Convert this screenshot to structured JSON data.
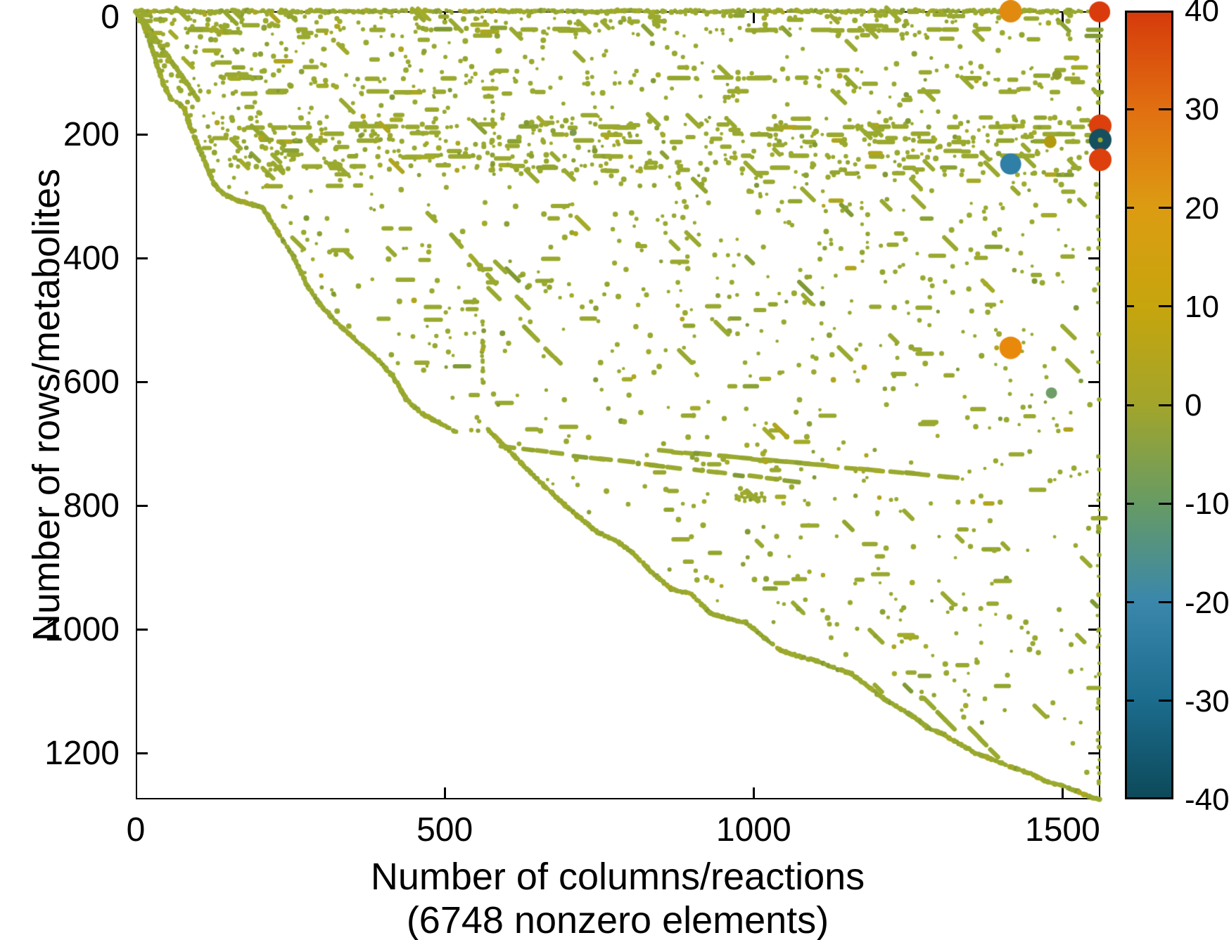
{
  "chart_data": {
    "type": "scatter",
    "subtype": "sparsity-spy-plot",
    "title": "",
    "xlabel": "Number of columns/reactions",
    "xlabel_line2": "(6748 nonzero elements)",
    "ylabel": "Number of rows/metabolites",
    "nonzero_elements": 6748,
    "xlim": [
      0,
      1561
    ],
    "ylim": [
      0,
      1274
    ],
    "y_axis_inverted": true,
    "x_ticks": [
      0,
      500,
      1000,
      1500
    ],
    "y_ticks": [
      0,
      200,
      400,
      600,
      800,
      1000,
      1200
    ],
    "grid": false,
    "background_color": "#ffffff",
    "axis_color": "#000000",
    "marker_color_base": "#9aa92f",
    "marker_color_variants": [
      "#9aa92f",
      "#93a52c",
      "#a4ab27",
      "#8aa134",
      "#b0a51c",
      "#7f9a33"
    ],
    "colorbar": {
      "min": -40,
      "max": 40,
      "ticks": [
        40,
        30,
        20,
        10,
        0,
        -10,
        -20,
        -30,
        -40
      ],
      "gradient_top_to_bottom": [
        "#d63b0b",
        "#e17011",
        "#dc9c12",
        "#c6a50d",
        "#a2a52b",
        "#679b64",
        "#3a87ab",
        "#1c6c8e",
        "#0d4a5a"
      ]
    },
    "special_points": [
      {
        "col": 1416,
        "row": 0,
        "value": 25,
        "radius": 16,
        "color": "#e18a10"
      },
      {
        "col": 1560,
        "row": 1,
        "value": 40,
        "radius": 15,
        "color": "#da3b0c"
      },
      {
        "col": 1561,
        "row": 185,
        "value": 38,
        "radius": 16,
        "color": "#dd400c"
      },
      {
        "col": 1561,
        "row": 208,
        "value": -38,
        "radius": 16,
        "color": "#16505f",
        "center_dot": "#9aa92f"
      },
      {
        "col": 1561,
        "row": 240,
        "value": 38,
        "radius": 16,
        "color": "#dd400c"
      },
      {
        "col": 1416,
        "row": 247,
        "value": -22,
        "radius": 15,
        "color": "#2f7fa7"
      },
      {
        "col": 1480,
        "row": 211,
        "value": 12,
        "radius": 9,
        "color": "#b29a10"
      },
      {
        "col": 1416,
        "row": 544,
        "value": 23,
        "radius": 16,
        "color": "#e8890c"
      },
      {
        "col": 1482,
        "row": 617,
        "value": -8,
        "radius": 8,
        "color": "#6f9e69"
      },
      {
        "col": 1491,
        "row": 103,
        "value": 3,
        "radius": 7,
        "color": "#8f9c2c"
      },
      {
        "col": 708,
        "row": 196,
        "value": -4,
        "radius": 5,
        "color": "#7d9a55"
      }
    ],
    "pattern": {
      "seed": 1337,
      "envelope_sections": [
        [
          [
            0,
            0
          ],
          [
            10,
            16
          ],
          [
            22,
            47
          ],
          [
            33,
            82
          ],
          [
            44,
            116
          ],
          [
            56,
            141
          ],
          [
            71,
            150
          ],
          [
            79,
            158
          ],
          [
            88,
            186
          ],
          [
            99,
            213
          ],
          [
            113,
            246
          ],
          [
            127,
            280
          ],
          [
            142,
            296
          ],
          [
            165,
            306
          ],
          [
            190,
            313
          ],
          [
            205,
            317
          ],
          [
            230,
            357
          ],
          [
            253,
            393
          ],
          [
            279,
            446
          ],
          [
            302,
            479
          ],
          [
            327,
            505
          ],
          [
            361,
            536
          ],
          [
            389,
            561
          ],
          [
            415,
            588
          ],
          [
            438,
            627
          ],
          [
            463,
            650
          ],
          [
            492,
            666
          ],
          [
            518,
            680
          ]
        ],
        [
          [
            569,
            675
          ],
          [
            600,
            706
          ],
          [
            634,
            741
          ],
          [
            680,
            785
          ],
          [
            714,
            815
          ],
          [
            748,
            842
          ],
          [
            782,
            859
          ],
          [
            805,
            876
          ],
          [
            833,
            905
          ],
          [
            867,
            934
          ],
          [
            899,
            942
          ],
          [
            930,
            973
          ],
          [
            958,
            982
          ],
          [
            987,
            988
          ],
          [
            1018,
            1013
          ],
          [
            1044,
            1033
          ],
          [
            1070,
            1042
          ],
          [
            1101,
            1050
          ],
          [
            1129,
            1061
          ],
          [
            1158,
            1071
          ],
          [
            1186,
            1092
          ],
          [
            1212,
            1113
          ],
          [
            1237,
            1127
          ],
          [
            1260,
            1141
          ],
          [
            1281,
            1158
          ],
          [
            1303,
            1167
          ],
          [
            1328,
            1181
          ],
          [
            1357,
            1198
          ],
          [
            1385,
            1209
          ],
          [
            1420,
            1223
          ],
          [
            1448,
            1232
          ],
          [
            1476,
            1246
          ],
          [
            1499,
            1252
          ],
          [
            1522,
            1260
          ],
          [
            1542,
            1269
          ],
          [
            1561,
            1274
          ]
        ]
      ],
      "inner_diagonal": [
        [
          8,
          10
        ],
        [
          101,
          143
        ]
      ],
      "gap_dots": [
        [
          543,
          677
        ],
        [
          554,
          678
        ]
      ],
      "top_row": {
        "row": 0,
        "c0": 0,
        "c1": 1561
      },
      "band_runs": [
        {
          "row": 30,
          "c0": 40,
          "c1": 1555,
          "n": 30
        },
        {
          "row": 108,
          "c0": 150,
          "c1": 1540,
          "n": 18
        },
        {
          "row": 130,
          "c0": 140,
          "c1": 560,
          "n": 10
        },
        {
          "row": 130,
          "c0": 900,
          "c1": 1500,
          "n": 6
        },
        {
          "row": 187,
          "c0": 120,
          "c1": 1558,
          "n": 34
        },
        {
          "row": 199,
          "c0": 300,
          "c1": 1558,
          "n": 20
        },
        {
          "row": 210,
          "c0": 120,
          "c1": 1558,
          "n": 30
        },
        {
          "row": 235,
          "c0": 200,
          "c1": 1558,
          "n": 22
        },
        {
          "row": 252,
          "c0": 250,
          "c1": 1400,
          "n": 12
        }
      ],
      "vertical_runs": [
        {
          "col": 577,
          "r0": 60,
          "r1": 260,
          "n": 18
        },
        {
          "col": 562,
          "r0": 482,
          "r1": 601,
          "n": 14
        },
        {
          "col": 1558,
          "r0": 15,
          "r1": 1265,
          "n": 55
        }
      ],
      "diagonal_dashes": [
        {
          "c0": 600,
          "r0": 705,
          "c1": 1080,
          "r1": 762,
          "n": 18
        },
        {
          "c0": 848,
          "r0": 710,
          "c1": 1332,
          "r1": 754,
          "n": 26
        },
        {
          "c0": 1283,
          "r0": 1118,
          "c1": 1320,
          "r1": 1155,
          "n": 3
        },
        {
          "c0": 1355,
          "r0": 1165,
          "c1": 1395,
          "r1": 1205,
          "n": 3
        },
        {
          "c0": 505,
          "r0": 355,
          "c1": 580,
          "r1": 438,
          "n": 5
        },
        {
          "c0": 623,
          "r0": 505,
          "c1": 691,
          "r1": 573,
          "n": 4
        }
      ],
      "squiggle": {
        "c0": 972,
        "c1": 1018,
        "row": 783,
        "amp": 4,
        "period": 11
      },
      "scatter_regions": [
        {
          "r0": 2,
          "r1": 40,
          "c0": 30,
          "c1": 1561,
          "n": 160
        },
        {
          "r0": 90,
          "r1": 140,
          "c0": 150,
          "c1": 1561,
          "n": 90
        },
        {
          "r0": 170,
          "r1": 265,
          "c0": 120,
          "c1": 1561,
          "n": 380
        },
        {
          "r0": 265,
          "r1": -1,
          "c0": 850,
          "c1": 1561,
          "n": 240
        },
        {
          "r0": 0,
          "r1": -1,
          "c0": 0,
          "c1": 1561,
          "n": 1050
        }
      ]
    }
  }
}
